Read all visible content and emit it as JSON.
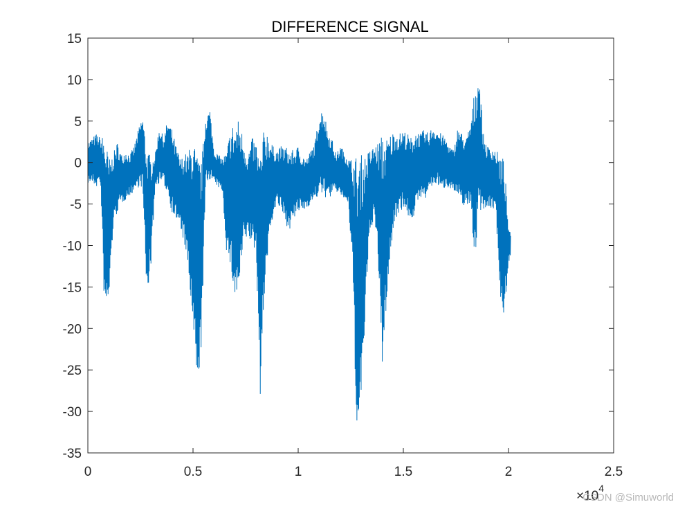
{
  "chart_data": {
    "type": "line",
    "title": "DIFFERENCE SIGNAL",
    "xlabel": "",
    "ylabel": "",
    "x_multiplier_label": "×10",
    "x_multiplier_exponent": "4",
    "xlim": [
      0,
      2.5
    ],
    "ylim": [
      -35,
      15
    ],
    "x_ticks": [
      0,
      0.5,
      1,
      1.5,
      2,
      2.5
    ],
    "x_tick_labels": [
      "0",
      "0.5",
      "1",
      "1.5",
      "2",
      "2.5"
    ],
    "y_ticks": [
      15,
      10,
      5,
      0,
      -5,
      -10,
      -15,
      -20,
      -25,
      -30,
      -35
    ],
    "y_tick_labels": [
      "15",
      "10",
      "5",
      "0",
      "-5",
      "-10",
      "-15",
      "-20",
      "-25",
      "-30",
      "-35"
    ],
    "grid": false,
    "series_color": "#0072BD",
    "series": [
      {
        "x": [
          0,
          0.02,
          0.04,
          0.06,
          0.08,
          0.1,
          0.12,
          0.14,
          0.16,
          0.18,
          0.2,
          0.22,
          0.24,
          0.26,
          0.28,
          0.3,
          0.32,
          0.34,
          0.36,
          0.38,
          0.4,
          0.42,
          0.44,
          0.46,
          0.48,
          0.5,
          0.52,
          0.54,
          0.56,
          0.58,
          0.6,
          0.62,
          0.64,
          0.66,
          0.68,
          0.7,
          0.72,
          0.74,
          0.76,
          0.78,
          0.8,
          0.82,
          0.84,
          0.86,
          0.88,
          0.9,
          0.92,
          0.94,
          0.96,
          0.98,
          1.0,
          1.02,
          1.04,
          1.06,
          1.08,
          1.1,
          1.12,
          1.14,
          1.16,
          1.18,
          1.2,
          1.22,
          1.24,
          1.26,
          1.28,
          1.3,
          1.32,
          1.34,
          1.36,
          1.38,
          1.4,
          1.42,
          1.44,
          1.46,
          1.48,
          1.5,
          1.52,
          1.54,
          1.56,
          1.58,
          1.6,
          1.62,
          1.64,
          1.66,
          1.68,
          1.7,
          1.72,
          1.74,
          1.76,
          1.78,
          1.8,
          1.82,
          1.84,
          1.86,
          1.88,
          1.9,
          1.92,
          1.94,
          1.96,
          1.98,
          2.0,
          2.01
        ],
        "y_max": [
          2.5,
          3.0,
          3.5,
          3.0,
          3.5,
          0.5,
          1.0,
          2.5,
          1.0,
          1.5,
          1.0,
          2.0,
          4.0,
          5.8,
          2.0,
          0.5,
          1.0,
          4.5,
          3.0,
          5.3,
          4.0,
          2.0,
          0.5,
          1.0,
          1.5,
          3.0,
          1.0,
          0.0,
          5.7,
          6.5,
          1.5,
          1.0,
          0.5,
          1.5,
          4.5,
          5.0,
          5.3,
          3.0,
          1.0,
          3.0,
          2.5,
          1.0,
          4.5,
          3.5,
          2.0,
          1.5,
          2.0,
          2.0,
          1.5,
          1.5,
          2.0,
          1.0,
          0.5,
          1.5,
          2.5,
          6.0,
          6.7,
          4.0,
          3.0,
          1.0,
          2.0,
          1.5,
          0.5,
          0.5,
          1.0,
          1.0,
          1.0,
          1.5,
          2.0,
          2.5,
          3.5,
          3.0,
          3.5,
          4.0,
          3.5,
          4.0,
          3.5,
          3.0,
          4.0,
          3.5,
          4.0,
          3.5,
          4.5,
          4.0,
          3.5,
          3.0,
          2.0,
          1.5,
          4.5,
          3.5,
          3.0,
          5.0,
          9.0,
          11.2,
          3.5,
          2.0,
          2.0,
          1.5,
          1.0,
          0.5,
          -8.0,
          -8.5
        ],
        "y_min": [
          -2.5,
          -2.5,
          -3.0,
          -2.5,
          -19.0,
          -17.0,
          -8.0,
          -6.0,
          -5.0,
          -4.5,
          -4.0,
          -3.5,
          -3.0,
          -3.0,
          -16.5,
          -12.5,
          -3.0,
          -2.5,
          -2.5,
          -4.0,
          -6.0,
          -7.0,
          -8.0,
          -10.0,
          -14.0,
          -20.7,
          -28.3,
          -22.0,
          -3.0,
          -2.0,
          -2.5,
          -3.0,
          -3.5,
          -11.0,
          -13.0,
          -17.0,
          -15.5,
          -10.0,
          -9.0,
          -10.0,
          -11.0,
          -28.2,
          -16.0,
          -10.0,
          -6.5,
          -5.0,
          -6.0,
          -7.5,
          -8.0,
          -7.0,
          -6.0,
          -6.0,
          -5.5,
          -5.0,
          -4.5,
          -4.0,
          -4.0,
          -4.5,
          -4.0,
          -3.5,
          -4.0,
          -4.5,
          -5.5,
          -14.0,
          -34.9,
          -29.5,
          -18.0,
          -9.0,
          -6.5,
          -12.0,
          -25.0,
          -17.0,
          -11.0,
          -7.0,
          -6.0,
          -5.5,
          -6.5,
          -7.0,
          -6.0,
          -4.0,
          -5.0,
          -3.5,
          -3.0,
          -2.5,
          -3.5,
          -3.0,
          -3.0,
          -3.5,
          -4.5,
          -5.0,
          -5.5,
          -5.0,
          -12.0,
          -6.0,
          -5.5,
          -6.0,
          -5.5,
          -6.0,
          -16.0,
          -19.0,
          -12.0,
          -11.5
        ]
      }
    ]
  },
  "watermark": "CSDN @Simuworld"
}
